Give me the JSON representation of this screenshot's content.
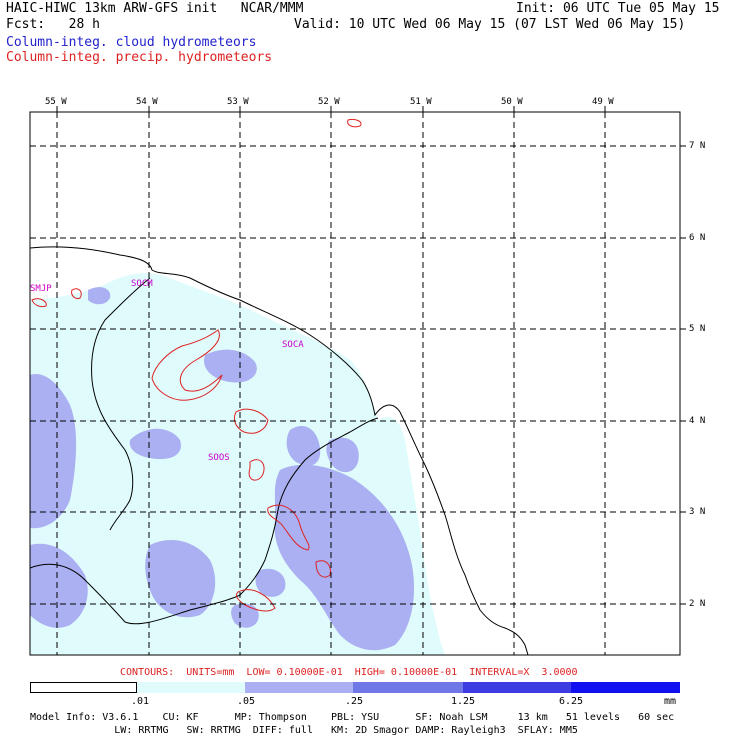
{
  "header": {
    "line1_left": "HAIC-HIWC 13km ARW-GFS init   NCAR/MMM",
    "line1_right": "Init: 06 UTC Tue 05 May 15",
    "line2_left": "Fcst:   28 h",
    "line2_right": "Valid: 10 UTC Wed 06 May 15 (07 LST Wed 06 May 15)",
    "legend_cloud": "Column-integ. cloud hydrometeors",
    "legend_precip": "Column-integ. precip. hydrometeors"
  },
  "colors": {
    "cloud_legend": "#2222cc",
    "precip_legend": "#dd2222",
    "contour": "#dd2222",
    "site_label": "#cc00cc",
    "shade_1": "#e0fbfb",
    "shade_2": "#aab0f2",
    "shade_3": "#7078e8",
    "shade_4": "#3c3ce0",
    "shade_5": "#1010f0"
  },
  "map": {
    "lon_labels": [
      "55 W",
      "54 W",
      "53 W",
      "52 W",
      "51 W",
      "50 W",
      "49 W"
    ],
    "lat_labels": [
      "7 N",
      "6 N",
      "5 N",
      "4 N",
      "3 N",
      "2 N"
    ],
    "sites": [
      "SMJP",
      "SOCM",
      "SOCA",
      "SOOS"
    ]
  },
  "contour_note": "CONTOURS:  UNITS=mm  LOW= 0.10000E-01  HIGH= 0.10000E-01  INTERVAL=X  3.0000",
  "colorbar": {
    "ticks": [
      ".01",
      ".05",
      ".25",
      "1.25",
      "6.25"
    ],
    "units": "mm"
  },
  "footer": {
    "line1": "Model Info: V3.6.1    CU: KF      MP: Thompson    PBL: YSU      SF: Noah LSM     13 km   51 levels   60 sec",
    "line2": "              LW: RRTMG   SW: RRTMG  DIFF: full   KM: 2D Smagor DAMP: Rayleigh3  SFLAY: MM5"
  }
}
